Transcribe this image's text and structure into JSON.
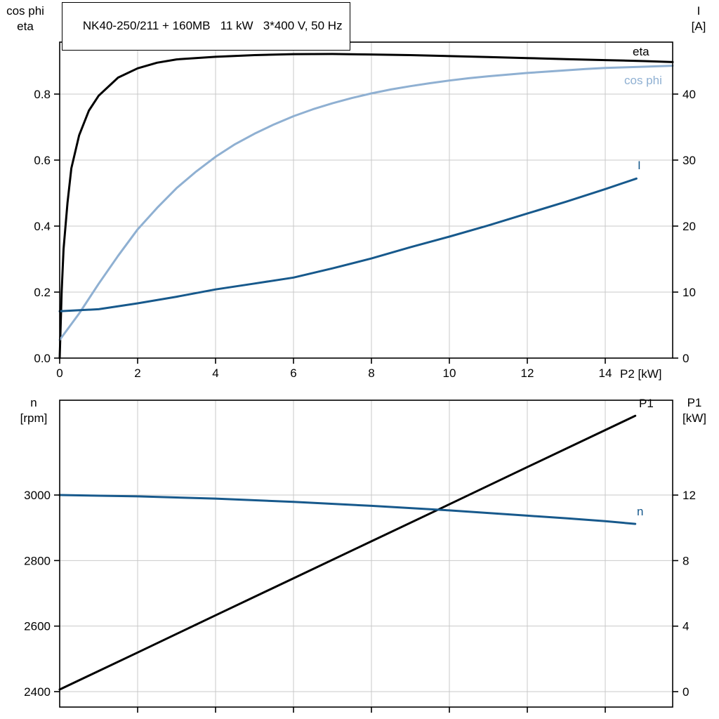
{
  "title": "NK40-250/211 + 160MB   11 kW   3*400 V, 50 Hz",
  "colors": {
    "black": "#000000",
    "light_blue": "#8fb0d2",
    "dark_blue": "#17598c",
    "grid": "#c9c9c9",
    "background": "#ffffff"
  },
  "axis_labels": {
    "top_left": [
      "cos phi",
      "eta"
    ],
    "top_right": [
      "I",
      "[A]"
    ],
    "x_axis": "P2 [kW]",
    "bottom_left": [
      "n",
      "[rpm]"
    ],
    "bottom_right": [
      "P1",
      "[kW]"
    ]
  },
  "chart_data": [
    {
      "type": "line",
      "title": "NK40-250/211 + 160MB   11 kW   3*400 V, 50 Hz",
      "xlabel": "P2 [kW]",
      "grid": true,
      "legend_position": "curve-end-right",
      "x_axis": {
        "range": [
          0,
          15.73
        ],
        "ticks": [
          0,
          2,
          4,
          6,
          8,
          10,
          12,
          14
        ],
        "tick_labels": [
          "0",
          "2",
          "4",
          "6",
          "8",
          "10",
          "12",
          "14"
        ]
      },
      "left_axis": {
        "label": "cos phi / eta",
        "range": [
          0,
          0.9574
        ],
        "ticks": [
          0,
          0.2,
          0.4,
          0.6,
          0.8
        ],
        "tick_labels": [
          "0.0",
          "0.2",
          "0.4",
          "0.6",
          "0.8"
        ]
      },
      "right_axis": {
        "label": "I [A]",
        "range": [
          0,
          47.87
        ],
        "ticks": [
          0,
          10,
          20,
          30,
          40
        ],
        "tick_labels": [
          "0",
          "10",
          "20",
          "30",
          "40"
        ]
      },
      "series": [
        {
          "name": "eta",
          "label": "eta",
          "axis": "left",
          "color_key": "black",
          "points": [
            [
              0,
              0
            ],
            [
              0.05,
              0.2
            ],
            [
              0.1,
              0.33
            ],
            [
              0.2,
              0.47
            ],
            [
              0.3,
              0.575
            ],
            [
              0.5,
              0.675
            ],
            [
              0.75,
              0.75
            ],
            [
              1,
              0.795
            ],
            [
              1.5,
              0.85
            ],
            [
              2,
              0.878
            ],
            [
              2.5,
              0.895
            ],
            [
              3,
              0.905
            ],
            [
              4,
              0.913
            ],
            [
              5,
              0.918
            ],
            [
              6,
              0.921
            ],
            [
              7,
              0.9215
            ],
            [
              8,
              0.92
            ],
            [
              9,
              0.918
            ],
            [
              10,
              0.915
            ],
            [
              11,
              0.912
            ],
            [
              12,
              0.909
            ],
            [
              13,
              0.906
            ],
            [
              14,
              0.903
            ],
            [
              15,
              0.9
            ],
            [
              15.73,
              0.897
            ]
          ]
        },
        {
          "name": "cos_phi",
          "label": "cos phi",
          "axis": "left",
          "color_key": "light_blue",
          "points": [
            [
              0,
              0.055
            ],
            [
              0.5,
              0.135
            ],
            [
              1,
              0.225
            ],
            [
              1.5,
              0.31
            ],
            [
              2,
              0.39
            ],
            [
              2.5,
              0.455
            ],
            [
              3,
              0.515
            ],
            [
              3.5,
              0.565
            ],
            [
              4,
              0.61
            ],
            [
              4.5,
              0.648
            ],
            [
              5,
              0.68
            ],
            [
              5.5,
              0.708
            ],
            [
              6,
              0.733
            ],
            [
              6.5,
              0.754
            ],
            [
              7,
              0.772
            ],
            [
              7.5,
              0.788
            ],
            [
              8,
              0.802
            ],
            [
              8.5,
              0.814
            ],
            [
              9,
              0.824
            ],
            [
              9.5,
              0.833
            ],
            [
              10,
              0.841
            ],
            [
              10.5,
              0.848
            ],
            [
              11,
              0.854
            ],
            [
              11.5,
              0.859
            ],
            [
              12,
              0.864
            ],
            [
              12.5,
              0.868
            ],
            [
              13,
              0.872
            ],
            [
              13.5,
              0.876
            ],
            [
              14,
              0.879
            ],
            [
              14.5,
              0.881
            ],
            [
              15,
              0.883
            ],
            [
              15.73,
              0.886
            ]
          ]
        },
        {
          "name": "current",
          "label": "I",
          "axis": "right",
          "color_key": "dark_blue",
          "points": [
            [
              0,
              7.1
            ],
            [
              1,
              7.4
            ],
            [
              2,
              8.3
            ],
            [
              3,
              9.3
            ],
            [
              4,
              10.4
            ],
            [
              5,
              11.3
            ],
            [
              6,
              12.2
            ],
            [
              7,
              13.6
            ],
            [
              8,
              15.1
            ],
            [
              9,
              16.8
            ],
            [
              10,
              18.4
            ],
            [
              11,
              20.1
            ],
            [
              12,
              21.9
            ],
            [
              13,
              23.7
            ],
            [
              14,
              25.6
            ],
            [
              14.8,
              27.2
            ]
          ]
        }
      ]
    },
    {
      "type": "line",
      "title": "",
      "xlabel": "",
      "grid": true,
      "legend_position": "curve-end-right",
      "x_axis": {
        "range": [
          0,
          15.73
        ],
        "ticks": [
          2,
          4,
          6,
          8,
          10,
          12,
          14
        ],
        "tick_labels": []
      },
      "left_axis": {
        "label": "n [rpm]",
        "range": [
          2352.9,
          3289.3
        ],
        "ticks": [
          2400,
          2600,
          2800,
          3000
        ],
        "tick_labels": [
          "2400",
          "2600",
          "2800",
          "3000"
        ]
      },
      "right_axis": {
        "label": "P1 [kW]",
        "range": [
          -0.94,
          17.79
        ],
        "ticks": [
          0,
          4,
          8,
          12
        ],
        "tick_labels": [
          "0",
          "4",
          "8",
          "12"
        ]
      },
      "series": [
        {
          "name": "p1",
          "label": "P1",
          "axis": "right",
          "color_key": "black",
          "points": [
            [
              0,
              0.13
            ],
            [
              2,
              2.39
            ],
            [
              4,
              4.66
            ],
            [
              6,
              6.92
            ],
            [
              8,
              9.18
            ],
            [
              10,
              11.44
            ],
            [
              12,
              13.71
            ],
            [
              14,
              15.97
            ],
            [
              14.77,
              16.84
            ]
          ]
        },
        {
          "name": "n",
          "label": "n",
          "axis": "left",
          "color_key": "dark_blue",
          "points": [
            [
              0,
              3000
            ],
            [
              2,
              2996
            ],
            [
              4,
              2989
            ],
            [
              6,
              2979
            ],
            [
              8,
              2967
            ],
            [
              10,
              2953
            ],
            [
              12,
              2937
            ],
            [
              13,
              2929
            ],
            [
              14,
              2920
            ],
            [
              14.77,
              2912
            ]
          ]
        }
      ]
    }
  ]
}
